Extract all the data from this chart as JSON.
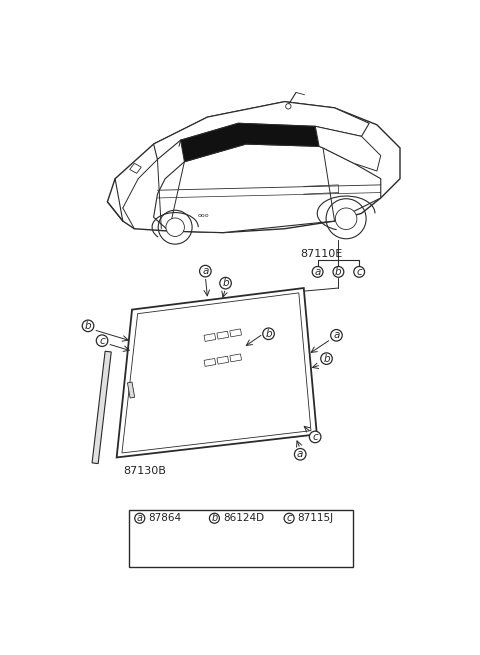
{
  "bg_color": "#ffffff",
  "part_label_87110E": "87110E",
  "part_label_87130B": "87130B",
  "part_a_code": "87864",
  "part_b_code": "86124D",
  "part_c_code": "87115J",
  "line_color": "#2a2a2a",
  "font_color": "#222222"
}
